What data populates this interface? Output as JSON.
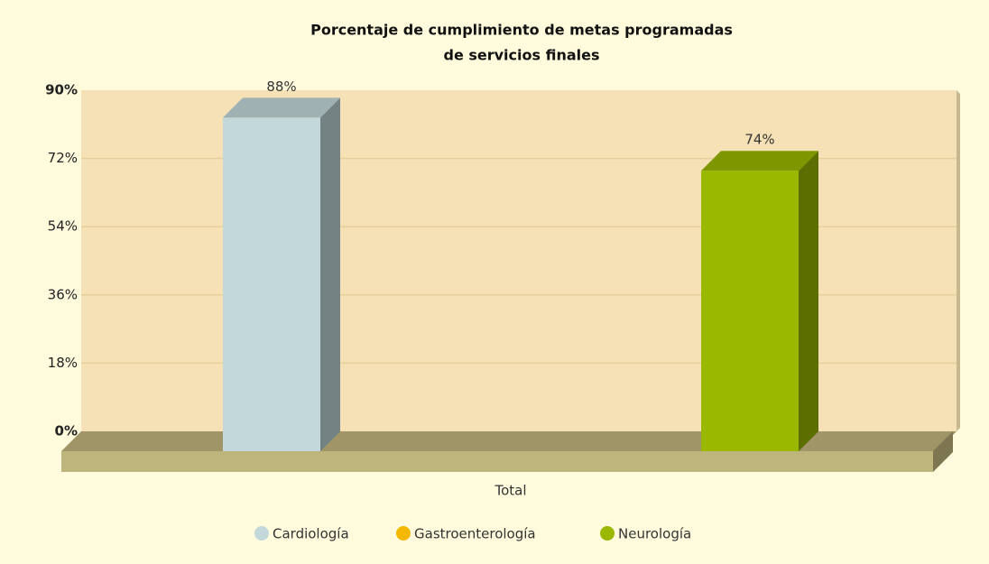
{
  "chart_data": {
    "type": "bar3d",
    "title": [
      "Porcentaje de cumplimiento de metas programadas",
      "de servicios finales"
    ],
    "categories": [
      "Total"
    ],
    "series": [
      {
        "name": "Cardiología",
        "color": "#c3d8da",
        "values": [
          88
        ],
        "value_labels": [
          "88%"
        ]
      },
      {
        "name": "Gastroenterología",
        "color": "#f5b800",
        "values": [
          null
        ],
        "value_labels": [
          null
        ]
      },
      {
        "name": "Neurología",
        "color": "#9ab800",
        "values": [
          74
        ],
        "value_labels": [
          "74%"
        ]
      }
    ],
    "ylim": [
      0,
      90
    ],
    "yticks": [
      {
        "value": 0,
        "label": "0%"
      },
      {
        "value": 18,
        "label": "18%"
      },
      {
        "value": 36,
        "label": "36%"
      },
      {
        "value": 54,
        "label": "54%"
      },
      {
        "value": 72,
        "label": "72%"
      },
      {
        "value": 90,
        "label": "90%"
      }
    ],
    "grid": true,
    "legend": "bottom"
  }
}
